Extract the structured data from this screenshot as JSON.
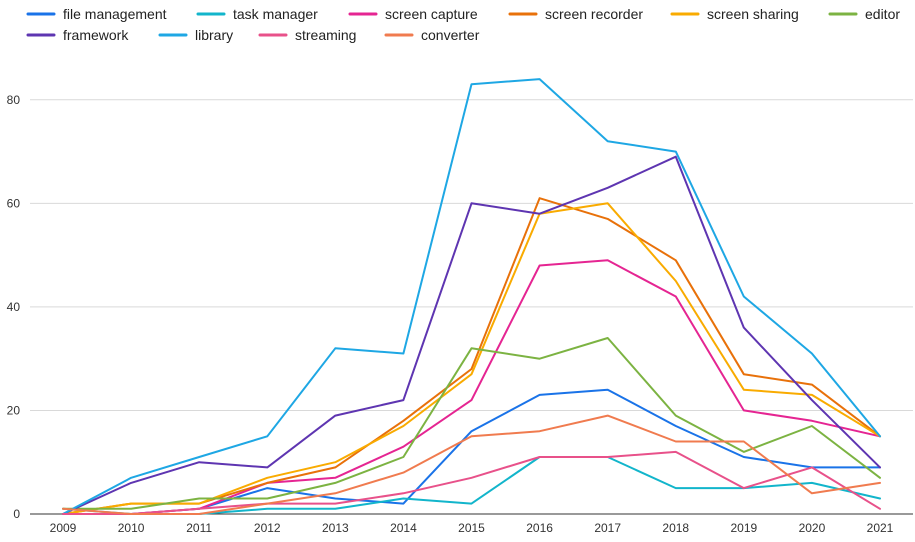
{
  "chart_data": {
    "type": "line",
    "title": "",
    "xlabel": "",
    "ylabel": "",
    "x": [
      "2009",
      "2010",
      "2011",
      "2012",
      "2013",
      "2014",
      "2015",
      "2016",
      "2017",
      "2018",
      "2019",
      "2020",
      "2021"
    ],
    "ylim": [
      0,
      90
    ],
    "yticks": [
      0,
      20,
      40,
      60,
      80
    ],
    "grid": true,
    "legend_position": "top",
    "series": [
      {
        "name": "file management",
        "color": "#1a73e8",
        "values": [
          0,
          0,
          1,
          5,
          3,
          2,
          16,
          23,
          24,
          17,
          11,
          9,
          9
        ]
      },
      {
        "name": "task manager",
        "color": "#12b5cb",
        "values": [
          1,
          0,
          0,
          1,
          1,
          3,
          2,
          11,
          11,
          5,
          5,
          6,
          3
        ]
      },
      {
        "name": "screen capture",
        "color": "#e52592",
        "values": [
          0,
          0,
          1,
          6,
          7,
          13,
          22,
          48,
          49,
          42,
          20,
          18,
          15
        ]
      },
      {
        "name": "screen recorder",
        "color": "#e8710a",
        "values": [
          0,
          2,
          2,
          6,
          9,
          18,
          28,
          61,
          57,
          49,
          27,
          25,
          15
        ]
      },
      {
        "name": "screen sharing",
        "color": "#f9ab00",
        "values": [
          0,
          2,
          2,
          7,
          10,
          17,
          27,
          58,
          60,
          45,
          24,
          23,
          15
        ]
      },
      {
        "name": "editor",
        "color": "#7cb342",
        "values": [
          1,
          1,
          3,
          3,
          6,
          11,
          32,
          30,
          34,
          19,
          12,
          17,
          7
        ]
      },
      {
        "name": "framework",
        "color": "#5e35b1",
        "values": [
          0,
          6,
          10,
          9,
          19,
          22,
          60,
          58,
          63,
          69,
          36,
          22,
          9
        ]
      },
      {
        "name": "library",
        "color": "#1ea7e4",
        "values": [
          0,
          7,
          11,
          15,
          32,
          31,
          83,
          84,
          72,
          70,
          42,
          31,
          15
        ]
      },
      {
        "name": "streaming",
        "color": "#e8518a",
        "values": [
          0,
          0,
          1,
          2,
          2,
          4,
          7,
          11,
          11,
          12,
          5,
          9,
          1
        ]
      },
      {
        "name": "converter",
        "color": "#f07b4f",
        "values": [
          1,
          0,
          0,
          2,
          4,
          8,
          15,
          16,
          19,
          14,
          14,
          4,
          6
        ]
      }
    ]
  }
}
